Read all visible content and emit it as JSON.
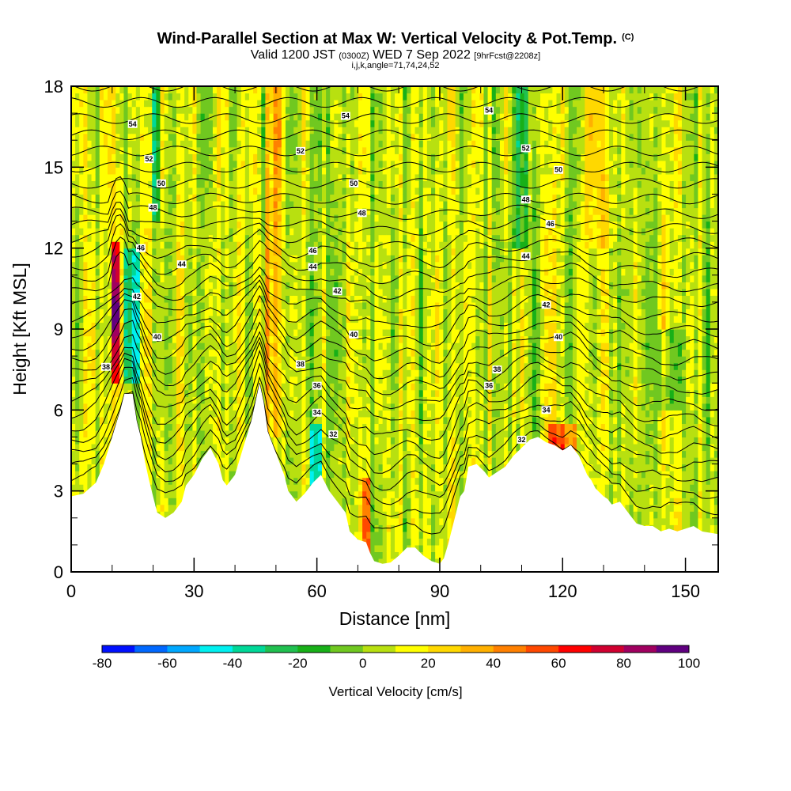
{
  "title": {
    "main": "Wind-Parallel Section at Max W: Vertical Velocity & Pot.Temp.",
    "copyright": "(C)",
    "valid_prefix": "Valid 1200 JST",
    "valid_utc": "(0300Z)",
    "valid_date": "WED 7 Sep 2022",
    "forecast": "[9hrFcst@2208z]",
    "indices": "i,j,k,angle=71,74,24,52"
  },
  "chart_data": {
    "type": "heatmap",
    "xlabel": "Distance [nm]",
    "ylabel": "Height [Kft MSL]",
    "xlim": [
      0,
      158
    ],
    "ylim": [
      0,
      18
    ],
    "x_ticks": [
      "0",
      "30",
      "60",
      "90",
      "120",
      "150"
    ],
    "y_ticks": [
      "0",
      "3",
      "6",
      "9",
      "12",
      "15",
      "18"
    ],
    "colorbar": {
      "label": "Vertical Velocity [cm/s]",
      "ticks": [
        "-80",
        "-60",
        "-40",
        "-20",
        "0",
        "20",
        "40",
        "60",
        "80",
        "100"
      ],
      "bins": [
        -80,
        -70,
        -60,
        -50,
        -40,
        -30,
        -20,
        -10,
        0,
        10,
        20,
        30,
        40,
        50,
        60,
        70,
        80,
        90,
        100
      ],
      "colors": [
        "#0010ff",
        "#0068ff",
        "#00a8ff",
        "#00f0f0",
        "#00d898",
        "#20c050",
        "#18b018",
        "#70c820",
        "#b8e010",
        "#ffff00",
        "#ffd800",
        "#ffb000",
        "#ff8000",
        "#ff4800",
        "#ff0000",
        "#d00030",
        "#a00060",
        "#600080"
      ]
    },
    "terrain_kft": [
      [
        0,
        2.8
      ],
      [
        3,
        2.9
      ],
      [
        6,
        3.3
      ],
      [
        8,
        4.0
      ],
      [
        10,
        5.0
      ],
      [
        11,
        5.5
      ],
      [
        12,
        6.0
      ],
      [
        13,
        6.6
      ],
      [
        15,
        6.6
      ],
      [
        16,
        5.6
      ],
      [
        17,
        5.0
      ],
      [
        18,
        4.1
      ],
      [
        19,
        3.4
      ],
      [
        20,
        2.8
      ],
      [
        21,
        2.2
      ],
      [
        23,
        2.0
      ],
      [
        25,
        2.2
      ],
      [
        27,
        2.6
      ],
      [
        28,
        3.2
      ],
      [
        30,
        3.6
      ],
      [
        32,
        4.2
      ],
      [
        34,
        4.6
      ],
      [
        36,
        4.0
      ],
      [
        37,
        3.4
      ],
      [
        38,
        3.2
      ],
      [
        40,
        3.6
      ],
      [
        42,
        4.6
      ],
      [
        44,
        5.6
      ],
      [
        46,
        7.0
      ],
      [
        47,
        6.3
      ],
      [
        48,
        5.2
      ],
      [
        50,
        4.4
      ],
      [
        52,
        3.6
      ],
      [
        53,
        3.0
      ],
      [
        55,
        2.6
      ],
      [
        57,
        2.9
      ],
      [
        59,
        3.3
      ],
      [
        61,
        3.6
      ],
      [
        63,
        3.0
      ],
      [
        65,
        2.6
      ],
      [
        67,
        2.2
      ],
      [
        68,
        1.5
      ],
      [
        70,
        1.2
      ],
      [
        72,
        1.1
      ],
      [
        73,
        0.7
      ],
      [
        74,
        0.4
      ],
      [
        76,
        0.3
      ],
      [
        78,
        0.35
      ],
      [
        80,
        0.6
      ],
      [
        82,
        0.9
      ],
      [
        84,
        0.9
      ],
      [
        86,
        0.6
      ],
      [
        88,
        0.4
      ],
      [
        90,
        0.3
      ],
      [
        91,
        0.5
      ],
      [
        92,
        1.0
      ],
      [
        93,
        1.6
      ],
      [
        94,
        2.2
      ],
      [
        95,
        2.8
      ],
      [
        96,
        3.0
      ],
      [
        97,
        3.9
      ],
      [
        99,
        4.0
      ],
      [
        101,
        3.7
      ],
      [
        102,
        3.5
      ],
      [
        104,
        3.7
      ],
      [
        106,
        3.9
      ],
      [
        108,
        4.3
      ],
      [
        110,
        4.6
      ],
      [
        112,
        4.9
      ],
      [
        114,
        5.0
      ],
      [
        116,
        4.8
      ],
      [
        118,
        4.7
      ],
      [
        119,
        4.6
      ],
      [
        120,
        4.5
      ],
      [
        122,
        4.7
      ],
      [
        124,
        4.3
      ],
      [
        126,
        3.6
      ],
      [
        127,
        3.4
      ],
      [
        128,
        3.1
      ],
      [
        130,
        2.8
      ],
      [
        131,
        2.7
      ],
      [
        132,
        2.5
      ],
      [
        134,
        2.6
      ],
      [
        136,
        2.2
      ],
      [
        138,
        1.8
      ],
      [
        140,
        1.7
      ],
      [
        142,
        1.7
      ],
      [
        144,
        1.5
      ],
      [
        146,
        1.6
      ],
      [
        148,
        1.5
      ],
      [
        150,
        1.6
      ],
      [
        152,
        1.7
      ],
      [
        154,
        1.5
      ],
      [
        158,
        1.4
      ]
    ],
    "theta_contours": [
      {
        "level": "32",
        "label_at": [
          64,
          5.1
        ]
      },
      {
        "level": "34",
        "label_at": [
          60,
          5.9
        ]
      },
      {
        "level": "36",
        "label_at": [
          60,
          6.9
        ]
      },
      {
        "level": "38",
        "label_at": [
          8.5,
          7.6
        ]
      },
      {
        "level": "38",
        "label_at": [
          56,
          7.7
        ]
      },
      {
        "level": "40",
        "label_at": [
          21,
          8.7
        ]
      },
      {
        "level": "40",
        "label_at": [
          69,
          8.8
        ]
      },
      {
        "level": "42",
        "label_at": [
          16,
          10.2
        ]
      },
      {
        "level": "42",
        "label_at": [
          65,
          10.4
        ]
      },
      {
        "level": "44",
        "label_at": [
          27,
          11.4
        ]
      },
      {
        "level": "44",
        "label_at": [
          59,
          11.3
        ]
      },
      {
        "level": "46",
        "label_at": [
          17,
          12.0
        ]
      },
      {
        "level": "46",
        "label_at": [
          59,
          11.9
        ]
      },
      {
        "level": "48",
        "label_at": [
          20,
          13.5
        ]
      },
      {
        "level": "48",
        "label_at": [
          71,
          13.3
        ]
      },
      {
        "level": "50",
        "label_at": [
          22,
          14.4
        ]
      },
      {
        "level": "50",
        "label_at": [
          69,
          14.4
        ]
      },
      {
        "level": "52",
        "label_at": [
          19,
          15.3
        ]
      },
      {
        "level": "52",
        "label_at": [
          56,
          15.6
        ]
      },
      {
        "level": "54",
        "label_at": [
          15,
          16.6
        ]
      },
      {
        "level": "54",
        "label_at": [
          67,
          16.9
        ]
      },
      {
        "level": "54",
        "label_at": [
          102,
          17.1
        ]
      },
      {
        "level": "52",
        "label_at": [
          111,
          15.7
        ]
      },
      {
        "level": "50",
        "label_at": [
          119,
          14.9
        ]
      },
      {
        "level": "48",
        "label_at": [
          111,
          13.8
        ]
      },
      {
        "level": "46",
        "label_at": [
          117,
          12.9
        ]
      },
      {
        "level": "44",
        "label_at": [
          111,
          11.7
        ]
      },
      {
        "level": "42",
        "label_at": [
          116,
          9.9
        ]
      },
      {
        "level": "40",
        "label_at": [
          119,
          8.7
        ]
      },
      {
        "level": "38",
        "label_at": [
          104,
          7.5
        ]
      },
      {
        "level": "36",
        "label_at": [
          102,
          6.9
        ]
      },
      {
        "level": "34",
        "label_at": [
          116,
          6.0
        ]
      },
      {
        "level": "32",
        "label_at": [
          110,
          4.9
        ]
      }
    ]
  }
}
